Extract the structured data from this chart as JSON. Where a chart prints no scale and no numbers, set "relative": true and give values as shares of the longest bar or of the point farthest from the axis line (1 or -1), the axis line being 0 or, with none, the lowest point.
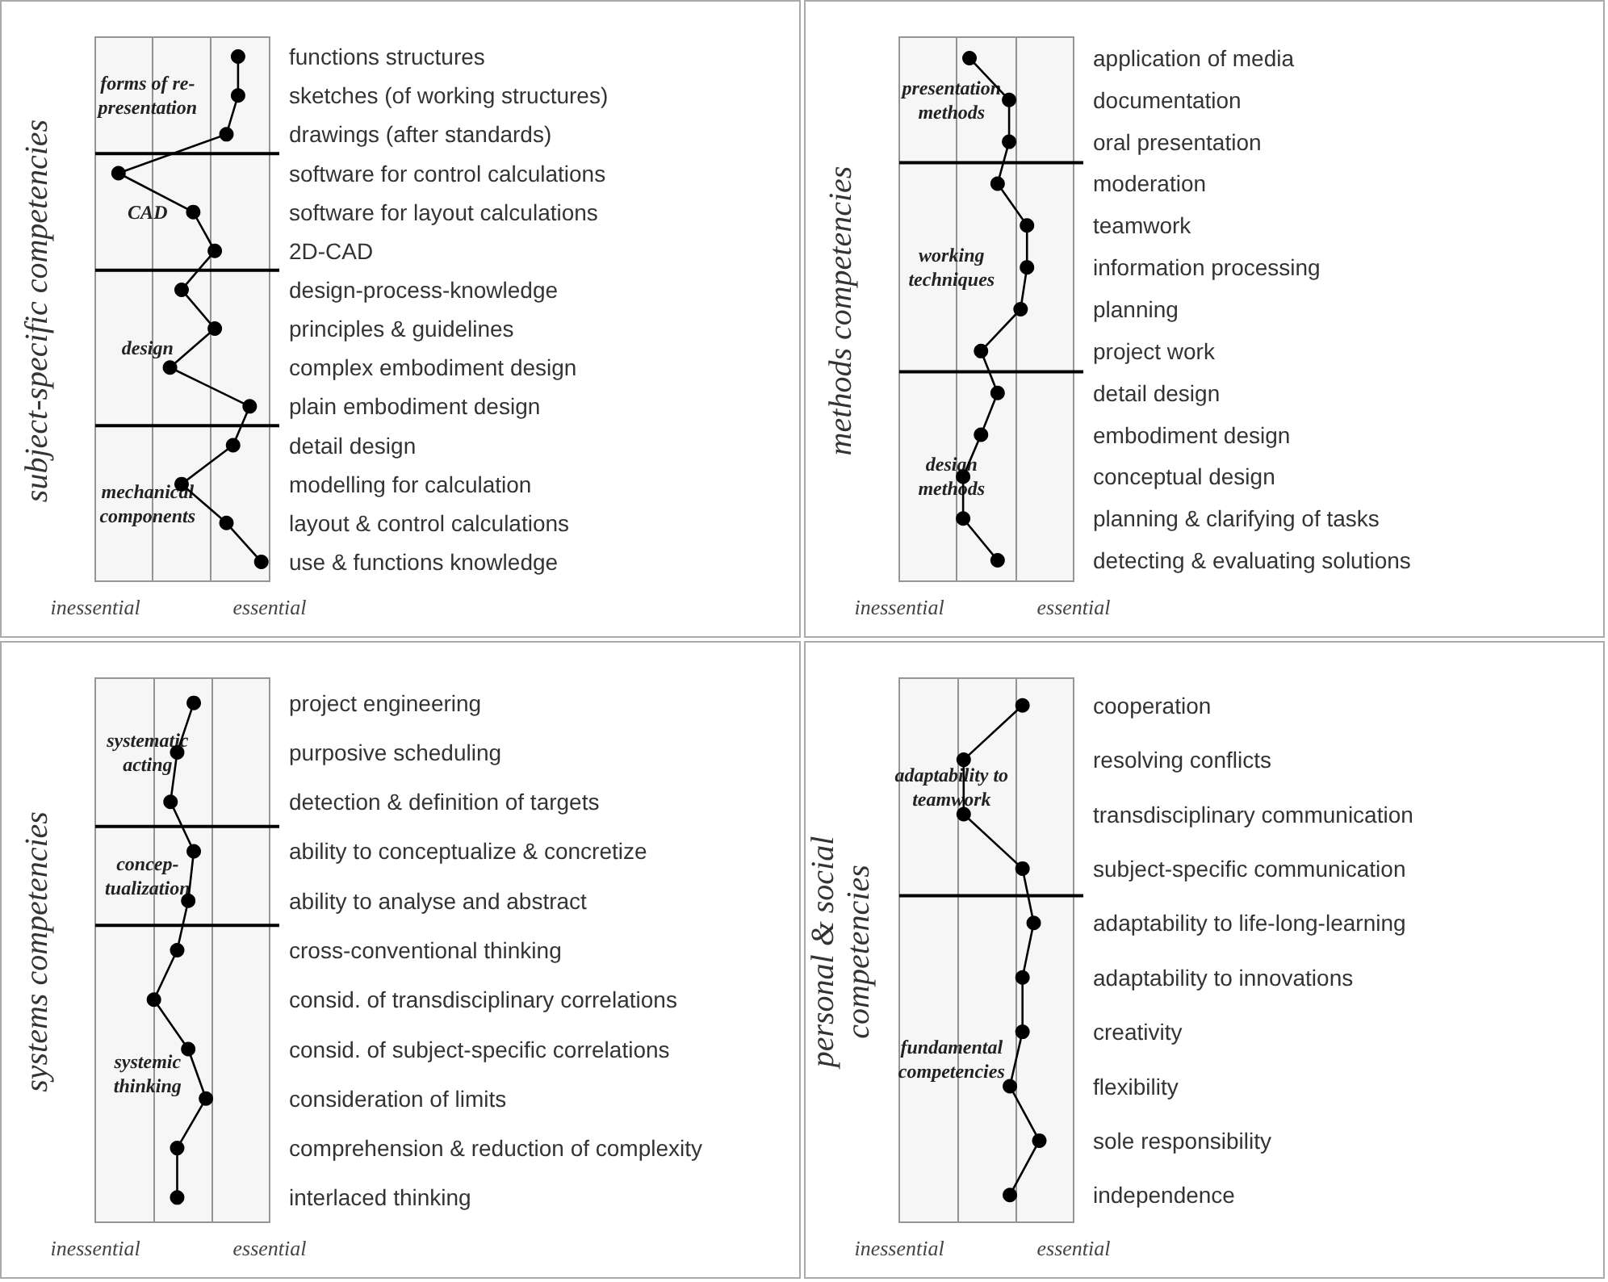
{
  "chart_data": [
    {
      "type": "line",
      "orientation": "horizontal",
      "relative": true,
      "ylabel": "subject-specific competencies",
      "annotations": [
        "inessential",
        "essential"
      ],
      "categories": [
        "functions structures",
        "sketches (of working structures)",
        "drawings (after standards)",
        "software for control calculations",
        "software for layout calculations",
        "2D-CAD",
        "design-process-knowledge",
        "principles & guidelines",
        "complex embodiment design",
        "plain embodiment design",
        "detail design",
        "modelling for calculation",
        "layout & control calculations",
        "use & functions knowledge"
      ],
      "series": [
        {
          "color": "#000000",
          "values": [
            0.86,
            0.86,
            0.79,
            0.14,
            0.59,
            0.72,
            0.52,
            0.72,
            0.45,
            0.93,
            0.83,
            0.52,
            0.79,
            1
          ]
        }
      ],
      "ref_lines": [
        {
          "axis": "x",
          "value": 0.34,
          "color": "#999999"
        },
        {
          "axis": "x",
          "value": 0.69,
          "color": "#999999"
        }
      ],
      "marker": "circle",
      "line_style": "solid",
      "bands": [
        {
          "axis": "y",
          "from": "functions structures",
          "to": "drawings (after standards)",
          "label": "forms of re-\npresentation"
        },
        {
          "axis": "y",
          "from": "software for control calculations",
          "to": "2D-CAD",
          "label": "CAD"
        },
        {
          "axis": "y",
          "from": "design-process-knowledge",
          "to": "plain embodiment design",
          "label": "design"
        },
        {
          "axis": "y",
          "from": "detail design",
          "to": "use & functions knowledge",
          "label": "mechanical\ncomponents"
        }
      ]
    },
    {
      "type": "line",
      "orientation": "horizontal",
      "relative": true,
      "ylabel": "methods competencies",
      "annotations": [
        "inessential",
        "essential"
      ],
      "categories": [
        "application of media",
        "documentation",
        "oral presentation",
        "moderation",
        "teamwork",
        "information processing",
        "planning",
        "project work",
        "detail design",
        "embodiment design",
        "conceptual design",
        "planning & clarifying of tasks",
        "detecting & evaluating solutions"
      ],
      "series": [
        {
          "color": "#000000",
          "values": [
            0.55,
            0.86,
            0.86,
            0.77,
            1,
            1,
            0.95,
            0.64,
            0.77,
            0.64,
            0.5,
            0.5,
            0.77
          ]
        }
      ],
      "ref_lines": [
        {
          "axis": "x",
          "value": 0.45,
          "color": "#999999"
        },
        {
          "axis": "x",
          "value": 0.91,
          "color": "#999999"
        }
      ],
      "marker": "circle",
      "line_style": "solid",
      "bands": [
        {
          "axis": "y",
          "from": "application of media",
          "to": "oral presentation",
          "label": "presentation\nmethods"
        },
        {
          "axis": "y",
          "from": "moderation",
          "to": "project work",
          "label": "working\ntechniques"
        },
        {
          "axis": "y",
          "from": "detail design",
          "to": "detecting & evaluating solutions",
          "label": "design\nmethods"
        }
      ]
    },
    {
      "type": "line",
      "orientation": "horizontal",
      "relative": true,
      "ylabel": "systems competencies",
      "annotations": [
        "inessential",
        "essential"
      ],
      "categories": [
        "project engineering",
        "purposive scheduling",
        "detection & definition of targets",
        "ability to conceptualize & concretize",
        "ability to analyse and abstract",
        "cross-conventional thinking",
        "consid. of transdisciplinary correlations",
        "consid. of subject-specific correlations",
        "consideration of limits",
        "comprehension & reduction of complexity",
        "interlaced thinking"
      ],
      "series": [
        {
          "color": "#000000",
          "values": [
            0.89,
            0.74,
            0.68,
            0.89,
            0.84,
            0.74,
            0.53,
            0.84,
            1,
            0.74,
            0.74
          ]
        }
      ],
      "ref_lines": [
        {
          "axis": "x",
          "value": 0.53,
          "color": "#999999"
        },
        {
          "axis": "x",
          "value": 1.05,
          "color": "#999999"
        }
      ],
      "marker": "circle",
      "line_style": "solid",
      "bands": [
        {
          "axis": "y",
          "from": "project engineering",
          "to": "detection & definition of targets",
          "label": "systematic\nacting"
        },
        {
          "axis": "y",
          "from": "ability to conceptualize & concretize",
          "to": "ability to analyse and abstract",
          "label": "concep-\ntualization"
        },
        {
          "axis": "y",
          "from": "cross-conventional thinking",
          "to": "interlaced thinking",
          "label": "systemic\nthinking"
        }
      ]
    },
    {
      "type": "line",
      "orientation": "horizontal",
      "relative": true,
      "ylabel": "personal & social\ncompetencies",
      "annotations": [
        "inessential",
        "essential"
      ],
      "categories": [
        "cooperation",
        "resolving conflicts",
        "transdisciplinary communication",
        "subject-specific communication",
        "adaptability to life-long-learning",
        "adaptability to innovations",
        "creativity",
        "flexibility",
        "sole responsibility",
        "independence"
      ],
      "series": [
        {
          "color": "#000000",
          "values": [
            0.88,
            0.46,
            0.46,
            0.88,
            0.96,
            0.88,
            0.88,
            0.79,
            1,
            0.79
          ]
        }
      ],
      "ref_lines": [
        {
          "axis": "x",
          "value": 0.42,
          "color": "#999999"
        },
        {
          "axis": "x",
          "value": 0.83,
          "color": "#999999"
        }
      ],
      "marker": "circle",
      "line_style": "solid",
      "bands": [
        {
          "axis": "y",
          "from": "cooperation",
          "to": "subject-specific communication",
          "label": "adaptability to\nteamwork"
        },
        {
          "axis": "y",
          "from": "adaptability to life-long-learning",
          "to": "independence",
          "label": "fundamental\ncompetencies"
        }
      ]
    }
  ]
}
